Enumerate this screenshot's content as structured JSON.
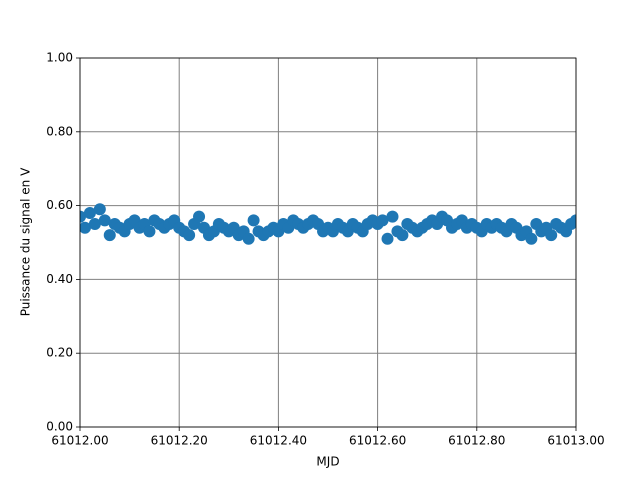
{
  "chart_data": {
    "type": "scatter",
    "x_label": "MJD",
    "y_label": "Puissance du signal en V",
    "x": [
      61012.0,
      61012.01,
      61012.02,
      61012.03,
      61012.04,
      61012.05,
      61012.06,
      61012.07,
      61012.08,
      61012.09,
      61012.1,
      61012.11,
      61012.12,
      61012.13,
      61012.14,
      61012.15,
      61012.16,
      61012.17,
      61012.18,
      61012.19,
      61012.2,
      61012.21,
      61012.22,
      61012.23,
      61012.24,
      61012.25,
      61012.26,
      61012.27,
      61012.28,
      61012.29,
      61012.3,
      61012.31,
      61012.32,
      61012.33,
      61012.34,
      61012.35,
      61012.36,
      61012.37,
      61012.38,
      61012.39,
      61012.4,
      61012.41,
      61012.42,
      61012.43,
      61012.44,
      61012.45,
      61012.46,
      61012.47,
      61012.48,
      61012.49,
      61012.5,
      61012.51,
      61012.52,
      61012.53,
      61012.54,
      61012.55,
      61012.56,
      61012.57,
      61012.58,
      61012.59,
      61012.6,
      61012.61,
      61012.62,
      61012.63,
      61012.64,
      61012.65,
      61012.66,
      61012.67,
      61012.68,
      61012.69,
      61012.7,
      61012.71,
      61012.72,
      61012.73,
      61012.74,
      61012.75,
      61012.76,
      61012.77,
      61012.78,
      61012.79,
      61012.8,
      61012.81,
      61012.82,
      61012.83,
      61012.84,
      61012.85,
      61012.86,
      61012.87,
      61012.88,
      61012.89,
      61012.9,
      61012.91,
      61012.92,
      61012.93,
      61012.94,
      61012.95,
      61012.96,
      61012.97,
      61012.98,
      61012.99,
      61013.0
    ],
    "values": [
      0.57,
      0.54,
      0.58,
      0.55,
      0.59,
      0.56,
      0.52,
      0.55,
      0.54,
      0.53,
      0.55,
      0.56,
      0.54,
      0.55,
      0.53,
      0.56,
      0.55,
      0.54,
      0.55,
      0.56,
      0.54,
      0.53,
      0.52,
      0.55,
      0.57,
      0.54,
      0.52,
      0.53,
      0.55,
      0.54,
      0.53,
      0.54,
      0.52,
      0.53,
      0.51,
      0.56,
      0.53,
      0.52,
      0.53,
      0.54,
      0.53,
      0.55,
      0.54,
      0.56,
      0.55,
      0.54,
      0.55,
      0.56,
      0.55,
      0.53,
      0.54,
      0.53,
      0.55,
      0.54,
      0.53,
      0.55,
      0.54,
      0.53,
      0.55,
      0.56,
      0.55,
      0.56,
      0.51,
      0.57,
      0.53,
      0.52,
      0.55,
      0.54,
      0.53,
      0.54,
      0.55,
      0.56,
      0.55,
      0.57,
      0.56,
      0.54,
      0.55,
      0.56,
      0.54,
      0.55,
      0.54,
      0.53,
      0.55,
      0.54,
      0.55,
      0.54,
      0.53,
      0.55,
      0.54,
      0.52,
      0.53,
      0.51,
      0.55,
      0.53,
      0.54,
      0.52,
      0.55,
      0.54,
      0.53,
      0.55,
      0.56
    ],
    "color": "#1f77b4",
    "xlim": [
      61012.0,
      61013.0
    ],
    "xticks": [
      {
        "value": 61012.0,
        "label": "61012.00"
      },
      {
        "value": 61012.2,
        "label": "61012.20"
      },
      {
        "value": 61012.4,
        "label": "61012.40"
      },
      {
        "value": 61012.6,
        "label": "61012.60"
      },
      {
        "value": 61012.8,
        "label": "61012.80"
      },
      {
        "value": 61013.0,
        "label": "61013.00"
      }
    ],
    "ylim": [
      0,
      1
    ],
    "yticks": [
      {
        "value": 0,
        "label": "0.00"
      },
      {
        "value": 0.2,
        "label": "0.20"
      },
      {
        "value": 0.4,
        "label": "0.40"
      },
      {
        "value": 0.6,
        "label": "0.60"
      },
      {
        "value": 0.8,
        "label": "0.80"
      },
      {
        "value": 1,
        "label": "1.00"
      }
    ],
    "grid": true
  }
}
